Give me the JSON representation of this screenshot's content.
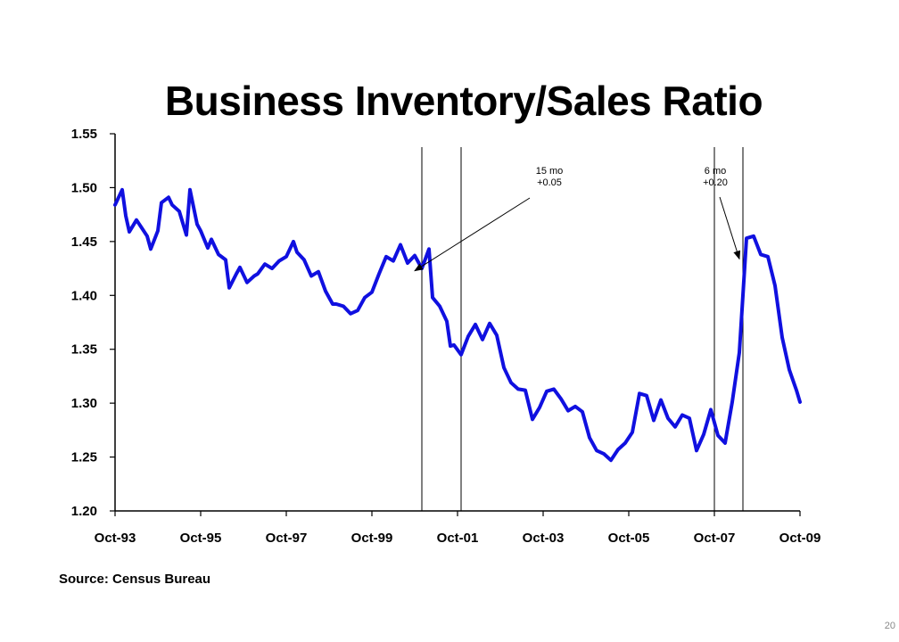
{
  "page": {
    "number": "20"
  },
  "source": "Source: Census Bureau",
  "chart_data": {
    "type": "line",
    "title": "Business Inventory/Sales Ratio",
    "xlabel": "",
    "ylabel": "",
    "ylim": [
      1.2,
      1.55
    ],
    "x_range": [
      "1993-10",
      "2009-10"
    ],
    "y_ticks": [
      "1.20",
      "1.25",
      "1.30",
      "1.35",
      "1.40",
      "1.45",
      "1.50",
      "1.55"
    ],
    "x_ticks": [
      "Oct-93",
      "Oct-95",
      "Oct-97",
      "Oct-99",
      "Oct-01",
      "Oct-03",
      "Oct-05",
      "Oct-07",
      "Oct-09"
    ],
    "grid": false,
    "line_color": "#1010e0",
    "series": [
      {
        "x": [
          "1993-10",
          "1993-12",
          "1994-01",
          "1994-02",
          "1994-04",
          "1994-05",
          "1994-07",
          "1994-08",
          "1994-10",
          "1994-11",
          "1995-01",
          "1995-02",
          "1995-04",
          "1995-06",
          "1995-07",
          "1995-09",
          "1995-10",
          "1995-12",
          "1996-01",
          "1996-03",
          "1996-05",
          "1996-06",
          "1996-08",
          "1996-09",
          "1996-11",
          "1997-01",
          "1997-02",
          "1997-04",
          "1997-06",
          "1997-08",
          "1997-10",
          "1997-12",
          "1998-01",
          "1998-03",
          "1998-05",
          "1998-07",
          "1998-09",
          "1998-11",
          "1998-12",
          "1999-02",
          "1999-04",
          "1999-06",
          "1999-08",
          "1999-10",
          "1999-12",
          "2000-02",
          "2000-04",
          "2000-06",
          "2000-08",
          "2000-10",
          "2000-12",
          "2001-02",
          "2001-03",
          "2001-05",
          "2001-07",
          "2001-08",
          "2001-09",
          "2001-11",
          "2002-01",
          "2002-03",
          "2002-05",
          "2002-07",
          "2002-09",
          "2002-11",
          "2003-01",
          "2003-03",
          "2003-05",
          "2003-07",
          "2003-09",
          "2003-11",
          "2004-01",
          "2004-03",
          "2004-05",
          "2004-07",
          "2004-09",
          "2004-11",
          "2005-01",
          "2005-03",
          "2005-05",
          "2005-07",
          "2005-09",
          "2005-11",
          "2006-01",
          "2006-03",
          "2006-05",
          "2006-07",
          "2006-09",
          "2006-11",
          "2007-01",
          "2007-03",
          "2007-05",
          "2007-07",
          "2007-09",
          "2007-11",
          "2008-01",
          "2008-03",
          "2008-05",
          "2008-07",
          "2008-09",
          "2008-11",
          "2009-01",
          "2009-03",
          "2009-05",
          "2009-07",
          "2009-09",
          "2009-10"
        ],
        "y": [
          1.484,
          1.498,
          1.474,
          1.459,
          1.47,
          1.465,
          1.455,
          1.443,
          1.46,
          1.486,
          1.491,
          1.484,
          1.478,
          1.456,
          1.498,
          1.466,
          1.46,
          1.444,
          1.452,
          1.438,
          1.433,
          1.407,
          1.42,
          1.426,
          1.412,
          1.418,
          1.42,
          1.429,
          1.425,
          1.432,
          1.436,
          1.45,
          1.44,
          1.433,
          1.418,
          1.422,
          1.404,
          1.392,
          1.392,
          1.39,
          1.383,
          1.386,
          1.398,
          1.403,
          1.42,
          1.436,
          1.432,
          1.447,
          1.43,
          1.437,
          1.425,
          1.443,
          1.398,
          1.39,
          1.376,
          1.353,
          1.354,
          1.345,
          1.362,
          1.373,
          1.359,
          1.374,
          1.363,
          1.333,
          1.319,
          1.313,
          1.312,
          1.285,
          1.296,
          1.311,
          1.313,
          1.304,
          1.293,
          1.297,
          1.292,
          1.268,
          1.256,
          1.253,
          1.247,
          1.257,
          1.263,
          1.273,
          1.309,
          1.307,
          1.284,
          1.303,
          1.286,
          1.278,
          1.289,
          1.286,
          1.256,
          1.271,
          1.294,
          1.27,
          1.263,
          1.301,
          1.347,
          1.453,
          1.455,
          1.438,
          1.436,
          1.409,
          1.361,
          1.331,
          1.312,
          1.301
        ]
      }
    ],
    "recession_markers": [
      "2000-12",
      "2001-11",
      "2007-10",
      "2008-06"
    ],
    "annotations": [
      {
        "line1": "15 mo",
        "line2": "+0.05",
        "arrow_to": [
          "2000-10",
          1.446
        ]
      },
      {
        "line1": "6 mo",
        "line2": "+0.20",
        "arrow_to": [
          "2008-05",
          1.457
        ]
      }
    ]
  }
}
